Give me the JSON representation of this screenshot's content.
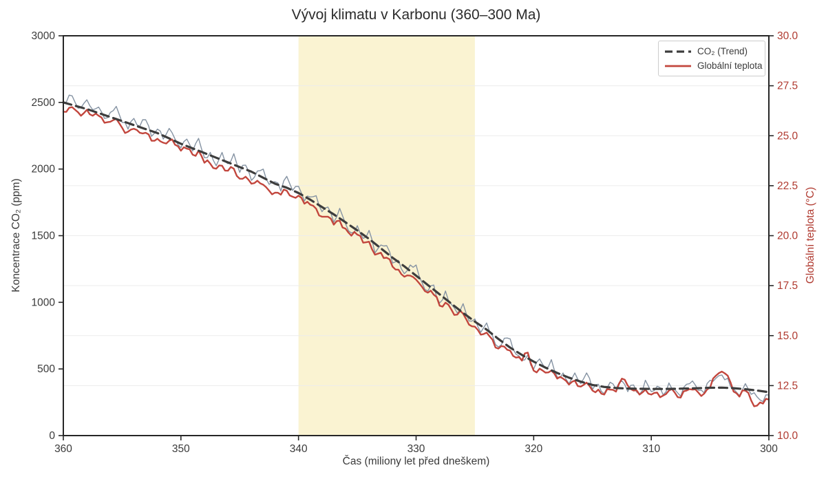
{
  "chart": {
    "title": "Vývoj klimatu v Karbonu (360–300 Ma)",
    "x_label": "Čas (miliony let před dneškem)",
    "y_label_left": "Koncentrace CO₂ (ppm)",
    "y_label_right": "Globální teplota (°C)",
    "legend": [
      {
        "label": "CO₂ (Trend)",
        "style": "dashed",
        "color": "#3d3d3d"
      },
      {
        "label": "Globální teplota",
        "style": "solid",
        "color": "#c2463d"
      }
    ]
  },
  "chart_data": {
    "type": "line",
    "title": "Vývoj klimatu v Karbonu (360–300 Ma)",
    "xlabel": "Čas (miliony let před dneškem)",
    "x_axis": {
      "left_value": 360,
      "right_value": 300,
      "reversed": true,
      "tick_values": [
        360,
        350,
        340,
        330,
        320,
        310,
        300
      ],
      "tick_labels": [
        "360",
        "350",
        "340",
        "330",
        "320",
        "310",
        "300"
      ]
    },
    "y_axis_left": {
      "label": "Koncentrace CO₂ (ppm)",
      "min": 0,
      "max": 3000,
      "tick_values": [
        0,
        500,
        1000,
        1500,
        2000,
        2500,
        3000
      ],
      "tick_labels": [
        "0",
        "500",
        "1000",
        "1500",
        "2000",
        "2500",
        "3000"
      ],
      "color": "#3a3a3a"
    },
    "y_axis_right": {
      "label": "Globální teplota (°C)",
      "min": 10,
      "max": 30,
      "tick_values": [
        10,
        12.5,
        15,
        17.5,
        20,
        22.5,
        25,
        27.5,
        30
      ],
      "tick_labels": [
        "10.0",
        "12.5",
        "15.0",
        "17.5",
        "20.0",
        "22.5",
        "25.0",
        "27.5",
        "30.0"
      ],
      "color": "#b03a30"
    },
    "grid": {
      "horizontal": true,
      "follows": "right-axis",
      "color": "#ececec"
    },
    "highlight_band": {
      "x_from": 340,
      "x_to": 325,
      "color": "#faf3d2"
    },
    "spine_color": "#262626",
    "series": [
      {
        "name": "CO₂",
        "axis": "left",
        "color": "#8593a3",
        "width": 1.4,
        "style": "solid",
        "x_start": 360,
        "x_step": -0.5,
        "texture": 26,
        "values": [
          2500,
          2555,
          2500,
          2460,
          2520,
          2445,
          2465,
          2380,
          2425,
          2470,
          2350,
          2300,
          2380,
          2320,
          2370,
          2245,
          2300,
          2225,
          2305,
          2225,
          2160,
          2225,
          2135,
          2230,
          2085,
          2125,
          2025,
          2125,
          2040,
          2115,
          1975,
          2030,
          1915,
          1985,
          2000,
          1885,
          1905,
          1835,
          1945,
          1840,
          1870,
          1760,
          1790,
          1800,
          1680,
          1715,
          1600,
          1705,
          1590,
          1520,
          1575,
          1480,
          1540,
          1370,
          1430,
          1425,
          1295,
          1315,
          1215,
          1280,
          1280,
          1150,
          1085,
          1130,
          995,
          1085,
          985,
          920,
          990,
          860,
          875,
          775,
          845,
          750,
          665,
          730,
          725,
          610,
          565,
          605,
          500,
          575,
          505,
          570,
          440,
          470,
          390,
          470,
          390,
          470,
          345,
          385,
          315,
          400,
          350,
          410,
          330,
          380,
          310,
          415,
          330,
          370,
          305,
          395,
          345,
          295,
          385,
          410,
          340,
          320,
          415,
          430,
          455,
          430,
          350,
          300,
          390,
          310,
          290,
          255,
          305
        ]
      },
      {
        "name": "Globální teplota",
        "axis": "right",
        "color": "#c2463d",
        "width": 2.4,
        "style": "solid",
        "x_start": 360,
        "x_step": -0.5,
        "texture": 0.17,
        "values": [
          26.2,
          26.4,
          26.3,
          26.0,
          26.3,
          26.0,
          26.0,
          25.65,
          25.7,
          25.85,
          25.4,
          25.2,
          25.35,
          25.15,
          25.15,
          24.75,
          24.85,
          24.65,
          24.75,
          24.55,
          24.25,
          24.35,
          24.05,
          24.25,
          23.65,
          23.6,
          23.35,
          23.5,
          23.25,
          23.35,
          22.85,
          22.95,
          22.6,
          22.75,
          22.55,
          22.25,
          22.15,
          22.05,
          22.25,
          21.95,
          22.0,
          21.6,
          21.55,
          21.35,
          20.95,
          20.95,
          20.55,
          20.75,
          20.35,
          20.0,
          20.05,
          19.65,
          19.7,
          19.05,
          19.15,
          18.9,
          18.45,
          18.3,
          17.95,
          18.0,
          17.8,
          17.45,
          17.15,
          17.05,
          16.5,
          16.65,
          16.3,
          16.05,
          16.1,
          15.55,
          15.45,
          15.05,
          15.15,
          14.8,
          14.35,
          14.45,
          14.25,
          13.9,
          13.75,
          14.15,
          13.25,
          13.35,
          13.15,
          13.25,
          12.85,
          12.85,
          12.55,
          12.75,
          12.45,
          12.65,
          12.25,
          12.3,
          12.05,
          12.3,
          12.2,
          12.85,
          12.5,
          12.25,
          12.05,
          12.3,
          12.05,
          12.15,
          12.0,
          12.25,
          12.15,
          11.9,
          12.25,
          12.3,
          12.15,
          12.1,
          12.4,
          13.0,
          13.2,
          13.0,
          12.2,
          11.95,
          12.25,
          11.75,
          11.5,
          11.6,
          11.8
        ]
      },
      {
        "name": "CO₂ (Trend)",
        "axis": "left",
        "color": "#3d3d3d",
        "width": 3.2,
        "style": "dashed",
        "x_start": 360,
        "x_step": -1,
        "texture": 0,
        "values": [
          2500,
          2475,
          2450,
          2420,
          2390,
          2360,
          2330,
          2300,
          2270,
          2230,
          2190,
          2155,
          2120,
          2085,
          2050,
          2015,
          1980,
          1935,
          1890,
          1860,
          1820,
          1770,
          1715,
          1660,
          1600,
          1540,
          1475,
          1405,
          1335,
          1270,
          1200,
          1130,
          1060,
          990,
          920,
          855,
          795,
          725,
          660,
          605,
          555,
          510,
          470,
          435,
          405,
          380,
          365,
          357,
          353,
          351,
          350,
          350,
          351,
          353,
          356,
          359,
          360,
          356,
          348,
          338,
          326
        ]
      }
    ]
  }
}
